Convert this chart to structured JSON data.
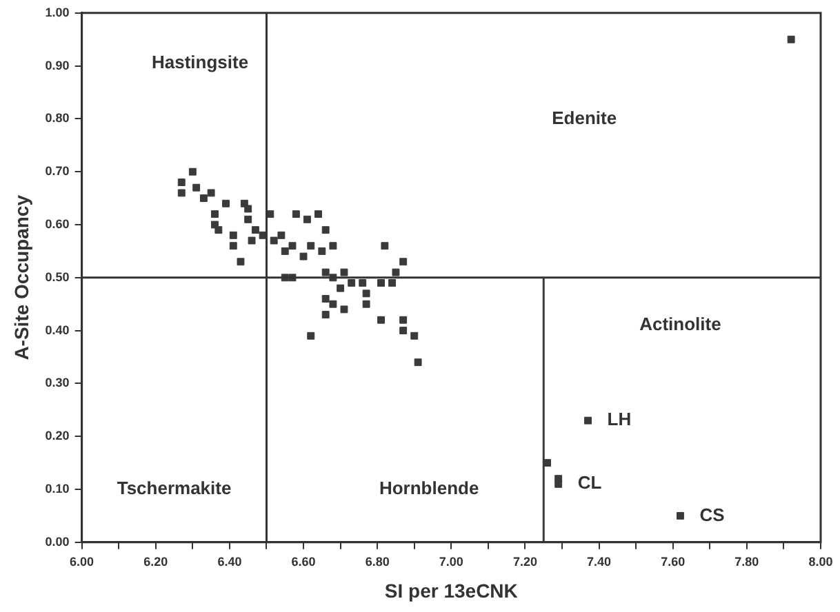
{
  "chart_data": {
    "type": "scatter",
    "xlabel": "SI per 13eCNK",
    "ylabel": "A-Site Occupancy",
    "xlim": [
      6,
      8
    ],
    "ylim": [
      0,
      1
    ],
    "xticks": [
      {
        "value": 6,
        "label": "6.00"
      },
      {
        "value": 6.1,
        "label": null
      },
      {
        "value": 6.2,
        "label": "6.20"
      },
      {
        "value": 6.3,
        "label": null
      },
      {
        "value": 6.4,
        "label": "6.40"
      },
      {
        "value": 6.5,
        "label": null
      },
      {
        "value": 6.6,
        "label": "6.60"
      },
      {
        "value": 6.7,
        "label": null
      },
      {
        "value": 6.8,
        "label": "6.80"
      },
      {
        "value": 6.9,
        "label": null
      },
      {
        "value": 7,
        "label": "7.00"
      },
      {
        "value": 7.1,
        "label": null
      },
      {
        "value": 7.2,
        "label": "7.20"
      },
      {
        "value": 7.3,
        "label": null
      },
      {
        "value": 7.4,
        "label": "7.40"
      },
      {
        "value": 7.5,
        "label": null
      },
      {
        "value": 7.6,
        "label": "7.60"
      },
      {
        "value": 7.7,
        "label": null
      },
      {
        "value": 7.8,
        "label": "7.80"
      },
      {
        "value": 7.9,
        "label": null
      },
      {
        "value": 8,
        "label": "8.00"
      }
    ],
    "yticks": [
      {
        "value": 0,
        "label": "0.00"
      },
      {
        "value": 0.1,
        "label": "0.10"
      },
      {
        "value": 0.2,
        "label": "0.20"
      },
      {
        "value": 0.3,
        "label": "0.30"
      },
      {
        "value": 0.4,
        "label": "0.40"
      },
      {
        "value": 0.5,
        "label": "0.50"
      },
      {
        "value": 0.6,
        "label": "0.60"
      },
      {
        "value": 0.7,
        "label": "0.70"
      },
      {
        "value": 0.8,
        "label": "0.80"
      },
      {
        "value": 0.9,
        "label": "0.90"
      },
      {
        "value": 1,
        "label": "1.00"
      }
    ],
    "grid": false,
    "legend": false,
    "marker": "square",
    "ref_lines": [
      {
        "axis": "x",
        "value": 6.5
      },
      {
        "axis": "y",
        "value": 0.5
      }
    ],
    "series": [
      {
        "color": "#3a3a3a",
        "x": [
          6.27,
          6.27,
          6.3,
          6.31,
          6.33,
          6.35,
          6.36,
          6.36,
          6.37,
          6.39,
          6.41,
          6.41,
          6.43,
          6.44,
          6.45,
          6.45,
          6.46,
          6.47,
          6.49,
          6.51,
          6.52,
          6.54,
          6.55,
          6.57,
          6.58,
          6.6,
          6.61,
          6.62,
          6.64,
          6.65,
          6.66,
          6.68,
          6.55,
          6.57,
          6.66,
          6.68,
          6.7,
          6.71,
          6.66,
          6.68,
          6.66,
          6.71,
          6.73,
          6.76,
          6.77,
          6.77,
          6.81,
          6.82,
          6.84,
          6.85,
          6.87,
          6.81,
          6.62,
          6.87,
          6.87,
          6.9,
          6.91
        ],
        "values": [
          0.68,
          0.66,
          0.7,
          0.67,
          0.65,
          0.66,
          0.62,
          0.6,
          0.59,
          0.64,
          0.56,
          0.58,
          0.53,
          0.64,
          0.63,
          0.61,
          0.57,
          0.59,
          0.58,
          0.62,
          0.57,
          0.58,
          0.55,
          0.56,
          0.62,
          0.54,
          0.61,
          0.56,
          0.62,
          0.55,
          0.59,
          0.56,
          0.5,
          0.5,
          0.51,
          0.5,
          0.48,
          0.51,
          0.46,
          0.45,
          0.43,
          0.44,
          0.49,
          0.49,
          0.47,
          0.45,
          0.49,
          0.56,
          0.49,
          0.51,
          0.53,
          0.42,
          0.39,
          0.42,
          0.4,
          0.39,
          0.34
        ]
      },
      {
        "name": "LH",
        "color": "#3a3a3a",
        "x": [
          7.37
        ],
        "values": [
          0.23
        ]
      },
      {
        "name": "CL",
        "color": "#3a3a3a",
        "x": [
          7.26,
          7.29,
          7.29
        ],
        "values": [
          0.15,
          0.12,
          0.11
        ]
      },
      {
        "name": "CS",
        "color": "#3a3a3a",
        "x": [
          7.62
        ],
        "values": [
          0.05
        ]
      },
      {
        "color": "#3a3a3a",
        "x": [
          7.92
        ],
        "values": [
          0.95
        ]
      },
      {
        "type": "line",
        "color": "#3a3a3a",
        "marker": "none",
        "x": [
          7.25,
          7.25
        ],
        "values": [
          0,
          0.5
        ]
      }
    ],
    "annotations": [
      "Hastingsite",
      "Edenite",
      "Actinolite",
      "Tschermakite",
      "Hornblende"
    ]
  }
}
